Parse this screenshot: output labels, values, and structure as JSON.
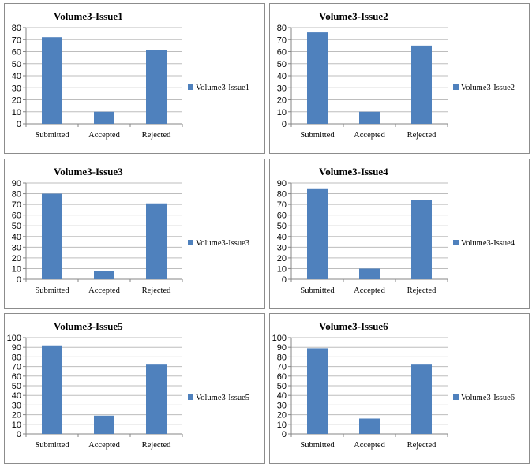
{
  "chart_data": [
    {
      "type": "bar",
      "title": "Volume3-Issue1",
      "categories": [
        "Submitted",
        "Accepted",
        "Rejected"
      ],
      "series": [
        {
          "name": "Volume3-Issue1",
          "values": [
            72,
            10,
            61
          ]
        }
      ],
      "ylim": [
        0,
        80
      ],
      "ytick_step": 10,
      "grid": true,
      "legend": "right",
      "color": "#4f81bd"
    },
    {
      "type": "bar",
      "title": "Volume3-Issue2",
      "categories": [
        "Submitted",
        "Accepted",
        "Rejected"
      ],
      "series": [
        {
          "name": "Volume3-Issue2",
          "values": [
            76,
            10,
            65
          ]
        }
      ],
      "ylim": [
        0,
        80
      ],
      "ytick_step": 10,
      "grid": true,
      "legend": "right",
      "color": "#4f81bd"
    },
    {
      "type": "bar",
      "title": "Volume3-Issue3",
      "categories": [
        "Submitted",
        "Accepted",
        "Rejected"
      ],
      "series": [
        {
          "name": "Volume3-Issue3",
          "values": [
            80,
            8,
            71
          ]
        }
      ],
      "ylim": [
        0,
        90
      ],
      "ytick_step": 10,
      "grid": true,
      "legend": "right",
      "color": "#4f81bd"
    },
    {
      "type": "bar",
      "title": "Volume3-Issue4",
      "categories": [
        "Submitted",
        "Accepted",
        "Rejected"
      ],
      "series": [
        {
          "name": "Volume3-Issue4",
          "values": [
            85,
            10,
            74
          ]
        }
      ],
      "ylim": [
        0,
        90
      ],
      "ytick_step": 10,
      "grid": true,
      "legend": "right",
      "color": "#4f81bd"
    },
    {
      "type": "bar",
      "title": "Volume3-Issue5",
      "categories": [
        "Submitted",
        "Accepted",
        "Rejected"
      ],
      "series": [
        {
          "name": "Volume3-Issue5",
          "values": [
            92,
            19,
            72
          ]
        }
      ],
      "ylim": [
        0,
        100
      ],
      "ytick_step": 10,
      "grid": true,
      "legend": "right",
      "color": "#4f81bd"
    },
    {
      "type": "bar",
      "title": "Volume3-Issue6",
      "categories": [
        "Submitted",
        "Accepted",
        "Rejected"
      ],
      "series": [
        {
          "name": "Volume3-Issue6",
          "values": [
            89,
            16,
            72
          ]
        }
      ],
      "ylim": [
        0,
        100
      ],
      "ytick_step": 10,
      "grid": true,
      "legend": "right",
      "color": "#4f81bd"
    }
  ]
}
